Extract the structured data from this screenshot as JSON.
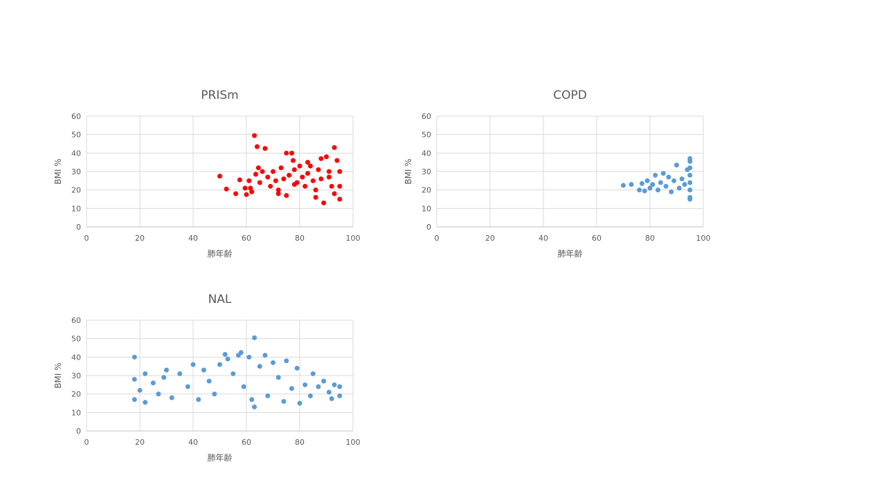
{
  "chart_data": [
    {
      "type": "scatter",
      "title": "PRISm",
      "xlabel": "肺年齢",
      "ylabel": "BMI %",
      "xlim": [
        0,
        100
      ],
      "ylim": [
        0,
        60
      ],
      "x_ticks": [
        "0",
        "20",
        "40",
        "60",
        "80",
        "100"
      ],
      "y_ticks": [
        "0",
        "10",
        "20",
        "30",
        "40",
        "50",
        "60"
      ],
      "grid": true,
      "legend": "none",
      "color": "#FF0000",
      "points": [
        [
          50,
          27.5
        ],
        [
          52.5,
          20.5
        ],
        [
          56,
          18
        ],
        [
          57.5,
          25.5
        ],
        [
          59.5,
          21
        ],
        [
          60,
          17.5
        ],
        [
          61,
          25
        ],
        [
          61.5,
          21
        ],
        [
          62,
          19
        ],
        [
          63,
          49.5
        ],
        [
          64,
          43.5
        ],
        [
          63.5,
          28.5
        ],
        [
          64.5,
          32
        ],
        [
          65,
          24
        ],
        [
          66,
          30
        ],
        [
          67,
          42.5
        ],
        [
          68,
          27
        ],
        [
          69,
          22
        ],
        [
          70,
          30
        ],
        [
          71,
          25
        ],
        [
          72,
          20
        ],
        [
          73,
          32
        ],
        [
          74,
          26
        ],
        [
          75,
          40
        ],
        [
          76,
          28
        ],
        [
          77,
          40
        ],
        [
          77.5,
          36
        ],
        [
          78,
          31
        ],
        [
          79,
          24
        ],
        [
          80,
          33
        ],
        [
          81,
          27
        ],
        [
          82,
          22
        ],
        [
          83,
          29
        ],
        [
          84,
          33
        ],
        [
          85,
          25
        ],
        [
          86,
          20
        ],
        [
          87,
          31
        ],
        [
          88,
          37
        ],
        [
          89,
          13
        ],
        [
          90,
          38
        ],
        [
          91,
          27
        ],
        [
          92,
          22
        ],
        [
          93,
          43
        ],
        [
          94,
          36
        ],
        [
          95,
          15
        ],
        [
          95,
          30
        ],
        [
          95,
          22
        ],
        [
          72,
          18
        ],
        [
          75,
          17
        ],
        [
          78,
          23
        ],
        [
          83,
          35
        ],
        [
          86,
          16
        ],
        [
          88,
          26
        ],
        [
          91,
          30
        ],
        [
          93,
          18
        ]
      ]
    },
    {
      "type": "scatter",
      "title": "COPD",
      "xlabel": "肺年齢",
      "ylabel": "BMI %",
      "xlim": [
        0,
        100
      ],
      "ylim": [
        0,
        60
      ],
      "x_ticks": [
        "0",
        "20",
        "40",
        "60",
        "80",
        "100"
      ],
      "y_ticks": [
        "0",
        "10",
        "20",
        "30",
        "40",
        "50",
        "60"
      ],
      "grid": true,
      "legend": "none",
      "color": "#5B9BD5",
      "points": [
        [
          70,
          22.5
        ],
        [
          73,
          23
        ],
        [
          76,
          20
        ],
        [
          77,
          23.5
        ],
        [
          78,
          19.5
        ],
        [
          79,
          25
        ],
        [
          80,
          21
        ],
        [
          81,
          23
        ],
        [
          82,
          28
        ],
        [
          83,
          20
        ],
        [
          84,
          24
        ],
        [
          85,
          29
        ],
        [
          86,
          22
        ],
        [
          87,
          27
        ],
        [
          88,
          19
        ],
        [
          89,
          25
        ],
        [
          90,
          33.5
        ],
        [
          91,
          21
        ],
        [
          92,
          26
        ],
        [
          93,
          23
        ],
        [
          94,
          31
        ],
        [
          95,
          37
        ],
        [
          95,
          35.5
        ],
        [
          95,
          32
        ],
        [
          95,
          28
        ],
        [
          95,
          24
        ],
        [
          95,
          20
        ],
        [
          95,
          16
        ],
        [
          95,
          15
        ]
      ]
    },
    {
      "type": "scatter",
      "title": "NAL",
      "xlabel": "肺年齢",
      "ylabel": "BMI %",
      "xlim": [
        0,
        100
      ],
      "ylim": [
        0,
        60
      ],
      "x_ticks": [
        "0",
        "20",
        "40",
        "60",
        "80",
        "100"
      ],
      "y_ticks": [
        "0",
        "10",
        "20",
        "30",
        "40",
        "50",
        "60"
      ],
      "grid": true,
      "legend": "none",
      "color": "#5B9BD5",
      "points": [
        [
          18,
          40
        ],
        [
          18,
          17
        ],
        [
          18,
          28
        ],
        [
          20,
          22
        ],
        [
          22,
          31
        ],
        [
          22,
          15.5
        ],
        [
          25,
          26
        ],
        [
          27,
          20
        ],
        [
          29,
          29
        ],
        [
          30,
          33
        ],
        [
          32,
          18
        ],
        [
          35,
          31
        ],
        [
          38,
          24
        ],
        [
          40,
          36
        ],
        [
          42,
          17
        ],
        [
          44,
          33
        ],
        [
          46,
          27
        ],
        [
          48,
          20
        ],
        [
          50,
          36
        ],
        [
          52,
          41.5
        ],
        [
          53,
          39
        ],
        [
          55,
          31
        ],
        [
          57,
          41
        ],
        [
          58,
          42.5
        ],
        [
          59,
          24
        ],
        [
          61,
          40
        ],
        [
          62,
          17
        ],
        [
          63,
          50.5
        ],
        [
          63,
          13
        ],
        [
          65,
          35
        ],
        [
          67,
          41
        ],
        [
          68,
          19
        ],
        [
          70,
          37
        ],
        [
          72,
          29
        ],
        [
          74,
          16
        ],
        [
          75,
          38
        ],
        [
          77,
          23
        ],
        [
          79,
          34
        ],
        [
          80,
          15
        ],
        [
          82,
          25
        ],
        [
          84,
          19
        ],
        [
          85,
          31
        ],
        [
          87,
          24
        ],
        [
          89,
          27
        ],
        [
          91,
          21
        ],
        [
          92,
          17.5
        ],
        [
          93,
          25
        ],
        [
          95,
          24
        ],
        [
          95,
          19
        ]
      ]
    }
  ]
}
